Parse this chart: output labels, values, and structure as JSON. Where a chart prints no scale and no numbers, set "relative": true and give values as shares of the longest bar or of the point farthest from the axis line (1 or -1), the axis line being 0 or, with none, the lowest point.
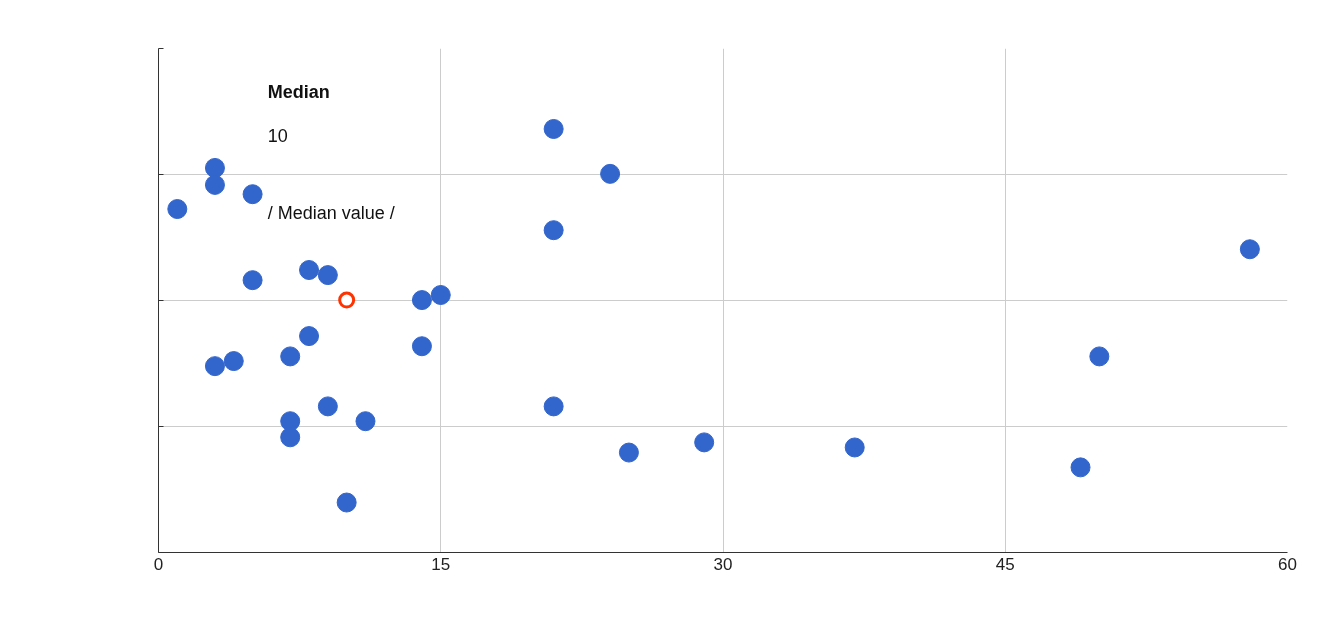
{
  "chart_data": {
    "type": "scatter",
    "relative": true,
    "tick_labels": "x",
    "grid": true,
    "marker": "circle",
    "xlim": [
      0,
      60
    ],
    "xticks": [
      0,
      15,
      30,
      45,
      60
    ],
    "series": [
      {
        "color": "#3366cc",
        "x": [
          1,
          3,
          3,
          5,
          5,
          8,
          9,
          21,
          24,
          21,
          14,
          15,
          58,
          3,
          4,
          7,
          8,
          14,
          50,
          7,
          7,
          9,
          11,
          21,
          25,
          29,
          37,
          49,
          10
        ],
        "values": [
          0.811,
          0.908,
          0.868,
          0.846,
          0.643,
          0.667,
          0.655,
          1.0,
          0.894,
          0.761,
          0.596,
          0.608,
          0.716,
          0.44,
          0.452,
          0.463,
          0.511,
          0.487,
          0.463,
          0.31,
          0.272,
          0.345,
          0.31,
          0.345,
          0.236,
          0.26,
          0.248,
          0.201,
          0.118
        ]
      },
      {
        "type": "scatter",
        "color": "#ff3300",
        "x": [
          10
        ],
        "values": [
          0.596
        ]
      }
    ],
    "annotations": [
      "Median",
      "10",
      "/ Median value /"
    ]
  }
}
